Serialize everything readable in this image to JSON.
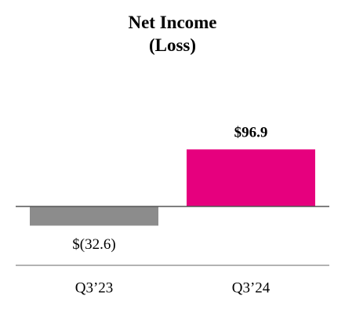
{
  "chart_data": {
    "type": "bar",
    "title": "Net Income (Loss)",
    "categories": [
      "Q3’23",
      "Q3’24"
    ],
    "values": [
      -32.6,
      96.9
    ],
    "value_labels": [
      "$(32.6)",
      "$96.9"
    ],
    "colors": [
      "#8c8c8c",
      "#e6007e"
    ],
    "ylim": [
      -50,
      120
    ]
  }
}
